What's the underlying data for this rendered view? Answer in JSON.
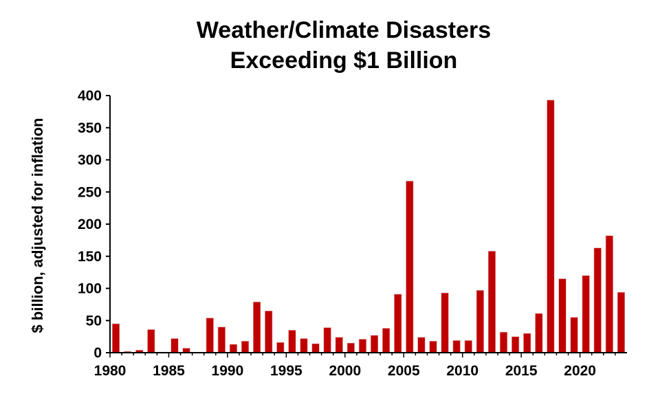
{
  "chart_data": {
    "type": "bar",
    "title_line1": "Weather/Climate Disasters",
    "title_line2": "Exceeding $1 Billion",
    "xlabel": "",
    "ylabel": "$ billion, adjusted for inflation",
    "ylim": [
      0,
      400
    ],
    "yticks": [
      0,
      50,
      100,
      150,
      200,
      250,
      300,
      350,
      400
    ],
    "xticks": [
      "1980",
      "1985",
      "1990",
      "1995",
      "2000",
      "2005",
      "2010",
      "2015",
      "2020"
    ],
    "bar_color": "#c00000",
    "x": [
      1980,
      1981,
      1982,
      1983,
      1984,
      1985,
      1986,
      1987,
      1988,
      1989,
      1990,
      1991,
      1992,
      1993,
      1994,
      1995,
      1996,
      1997,
      1998,
      1999,
      2000,
      2001,
      2002,
      2003,
      2004,
      2005,
      2006,
      2007,
      2008,
      2009,
      2010,
      2011,
      2012,
      2013,
      2014,
      2015,
      2016,
      2017,
      2018,
      2019,
      2020,
      2021,
      2022,
      2023
    ],
    "values": [
      45,
      2,
      4,
      36,
      1,
      22,
      7,
      0,
      54,
      40,
      13,
      18,
      79,
      65,
      16,
      35,
      22,
      14,
      39,
      24,
      15,
      21,
      27,
      38,
      91,
      267,
      24,
      18,
      93,
      19,
      19,
      97,
      158,
      32,
      25,
      30,
      61,
      393,
      115,
      55,
      120,
      163,
      182,
      94
    ]
  }
}
